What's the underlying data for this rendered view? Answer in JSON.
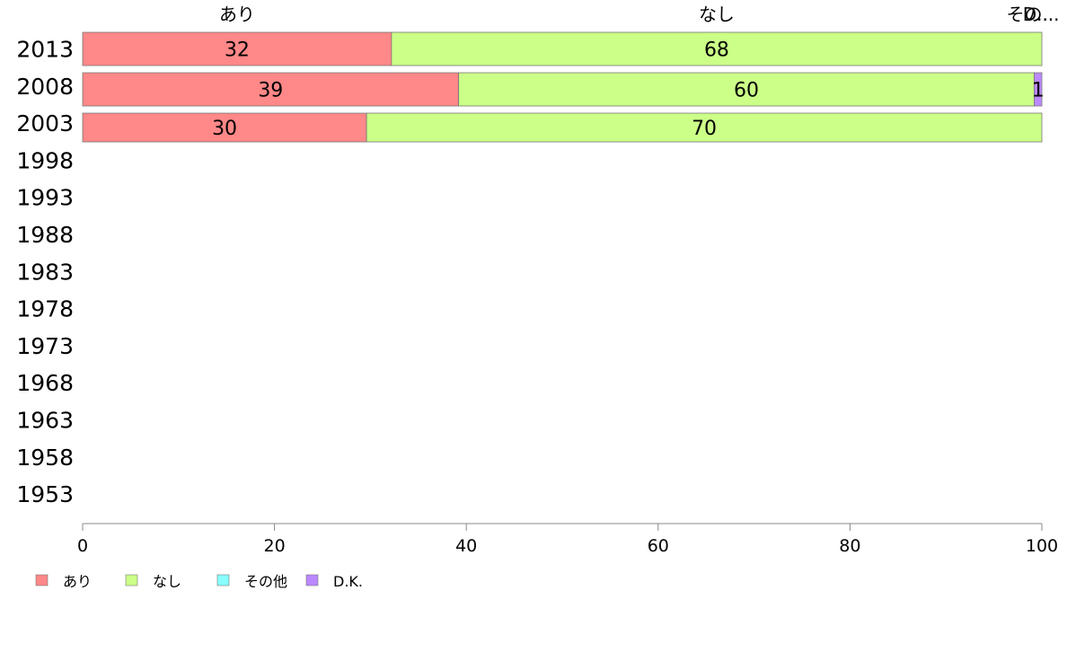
{
  "chart_data": {
    "type": "bar",
    "orientation": "horizontal",
    "stacked": true,
    "categories": [
      "2013",
      "2008",
      "2003",
      "1998",
      "1993",
      "1988",
      "1983",
      "1978",
      "1973",
      "1968",
      "1963",
      "1958",
      "1953"
    ],
    "series": [
      {
        "name": "あり",
        "color": "#ff8888",
        "values": [
          32.2,
          39.2,
          29.6,
          null,
          null,
          null,
          null,
          null,
          null,
          null,
          null,
          null,
          null
        ]
      },
      {
        "name": "なし",
        "color": "#ccff88",
        "values": [
          67.8,
          60.0,
          70.4,
          null,
          null,
          null,
          null,
          null,
          null,
          null,
          null,
          null,
          null
        ]
      },
      {
        "name": "その他",
        "color": "#88ffff",
        "values": [
          0,
          0,
          0,
          null,
          null,
          null,
          null,
          null,
          null,
          null,
          null,
          null,
          null
        ]
      },
      {
        "name": "D.K.",
        "color": "#bb88ff",
        "values": [
          0,
          0.8,
          0,
          null,
          null,
          null,
          null,
          null,
          null,
          null,
          null,
          null,
          null
        ]
      }
    ],
    "data_labels": {
      "2013": [
        "32",
        "68",
        "",
        ""
      ],
      "2008": [
        "39",
        "60",
        "",
        "1"
      ],
      "2003": [
        "30",
        "70",
        "",
        ""
      ]
    },
    "top_labels": [
      "あり",
      "なし",
      "その...",
      "D..."
    ],
    "xlim": [
      0,
      100
    ],
    "xticks": [
      "0",
      "20",
      "40",
      "60",
      "80",
      "100"
    ],
    "grid": false,
    "legend_position": "bottom-left",
    "legend": [
      "あり",
      "なし",
      "その他",
      "D.K."
    ]
  }
}
